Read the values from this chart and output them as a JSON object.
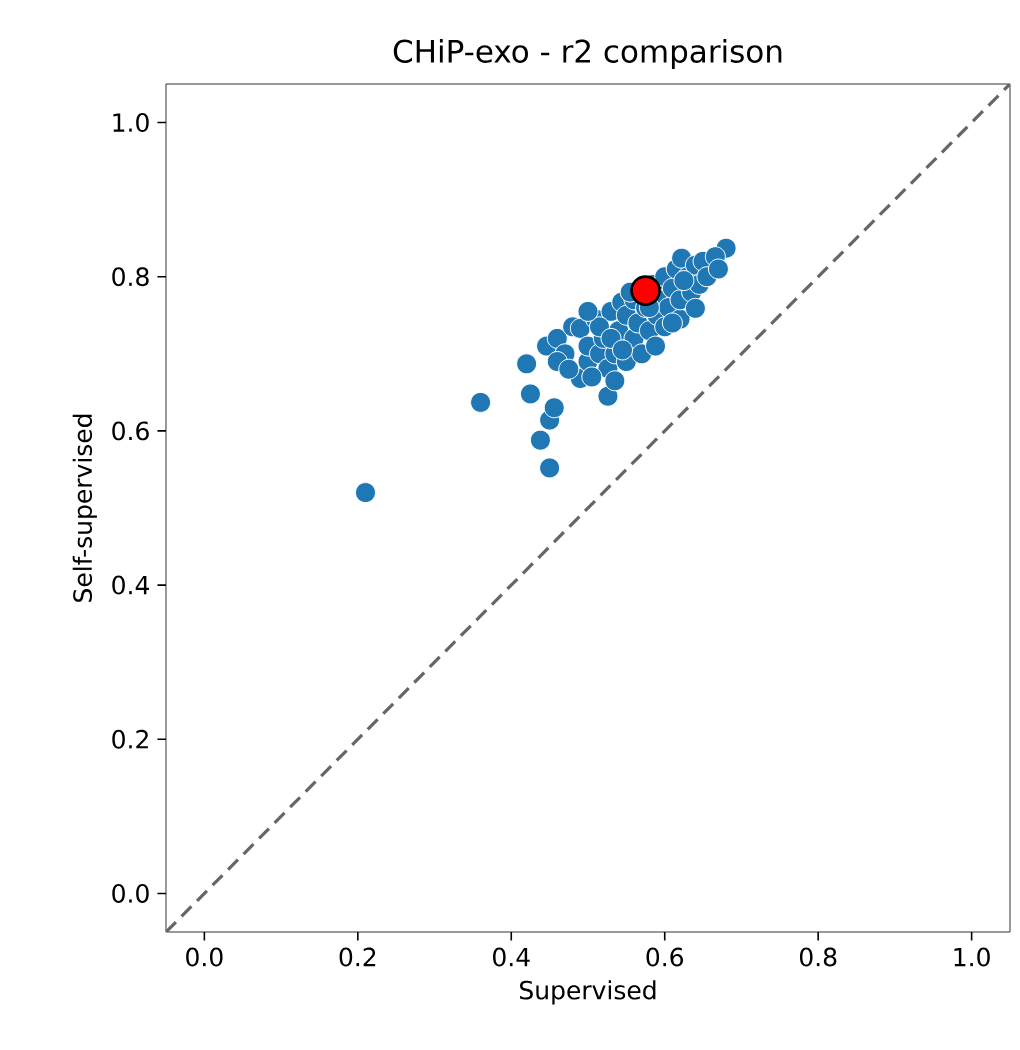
{
  "chart_data": {
    "type": "scatter",
    "title": "CHiP-exo - r2 comparison",
    "xlabel": "Supervised",
    "ylabel": "Self-supervised",
    "xlim": [
      -0.05,
      1.05
    ],
    "ylim": [
      -0.05,
      1.05
    ],
    "xticks": [
      {
        "value": 0,
        "label": "0.0"
      },
      {
        "value": 0.2,
        "label": "0.2"
      },
      {
        "value": 0.4,
        "label": "0.4"
      },
      {
        "value": 0.6,
        "label": "0.6"
      },
      {
        "value": 0.8,
        "label": "0.8"
      },
      {
        "value": 1,
        "label": "1.0"
      }
    ],
    "yticks": [
      {
        "value": 0,
        "label": "0.0"
      },
      {
        "value": 0.2,
        "label": "0.2"
      },
      {
        "value": 0.4,
        "label": "0.4"
      },
      {
        "value": 0.6,
        "label": "0.6"
      },
      {
        "value": 0.8,
        "label": "0.8"
      },
      {
        "value": 1,
        "label": "1.0"
      }
    ],
    "grid": false,
    "series": [
      {
        "color": "#1f77b4",
        "marker": "circle",
        "x": [
          0.21,
          0.36,
          0.42,
          0.425,
          0.438,
          0.45,
          0.45,
          0.456,
          0.68,
          0.446,
          0.46,
          0.47,
          0.48,
          0.49,
          0.49,
          0.5,
          0.5,
          0.51,
          0.515,
          0.52,
          0.526,
          0.526,
          0.53,
          0.535,
          0.54,
          0.544,
          0.55,
          0.55,
          0.56,
          0.56,
          0.565,
          0.57,
          0.575,
          0.58,
          0.585,
          0.588,
          0.59,
          0.595,
          0.6,
          0.6,
          0.605,
          0.61,
          0.615,
          0.62,
          0.62,
          0.622,
          0.63,
          0.635,
          0.64,
          0.64,
          0.645,
          0.65,
          0.655,
          0.666,
          0.67,
          0.46,
          0.475,
          0.505,
          0.515,
          0.53,
          0.545,
          0.58,
          0.61,
          0.625,
          0.535,
          0.5,
          0.555
        ],
        "values": [
          0.52,
          0.637,
          0.687,
          0.648,
          0.588,
          0.552,
          0.614,
          0.63,
          0.837,
          0.71,
          0.72,
          0.7,
          0.735,
          0.668,
          0.733,
          0.69,
          0.71,
          0.745,
          0.7,
          0.72,
          0.645,
          0.681,
          0.755,
          0.7,
          0.73,
          0.767,
          0.69,
          0.75,
          0.72,
          0.77,
          0.74,
          0.7,
          0.76,
          0.73,
          0.79,
          0.71,
          0.75,
          0.77,
          0.8,
          0.735,
          0.76,
          0.785,
          0.81,
          0.745,
          0.77,
          0.824,
          0.8,
          0.78,
          0.759,
          0.815,
          0.79,
          0.82,
          0.8,
          0.826,
          0.81,
          0.69,
          0.68,
          0.67,
          0.735,
          0.72,
          0.705,
          0.76,
          0.74,
          0.795,
          0.665,
          0.755,
          0.78
        ]
      },
      {
        "color": "#ff0000",
        "marker": "circle",
        "x": [
          0.575
        ],
        "values": [
          0.782
        ]
      },
      {
        "type": "line",
        "color": "#666666",
        "line_style": "dashed",
        "x": [
          -0.05,
          1.05
        ],
        "values": [
          -0.05,
          1.05
        ]
      }
    ]
  }
}
